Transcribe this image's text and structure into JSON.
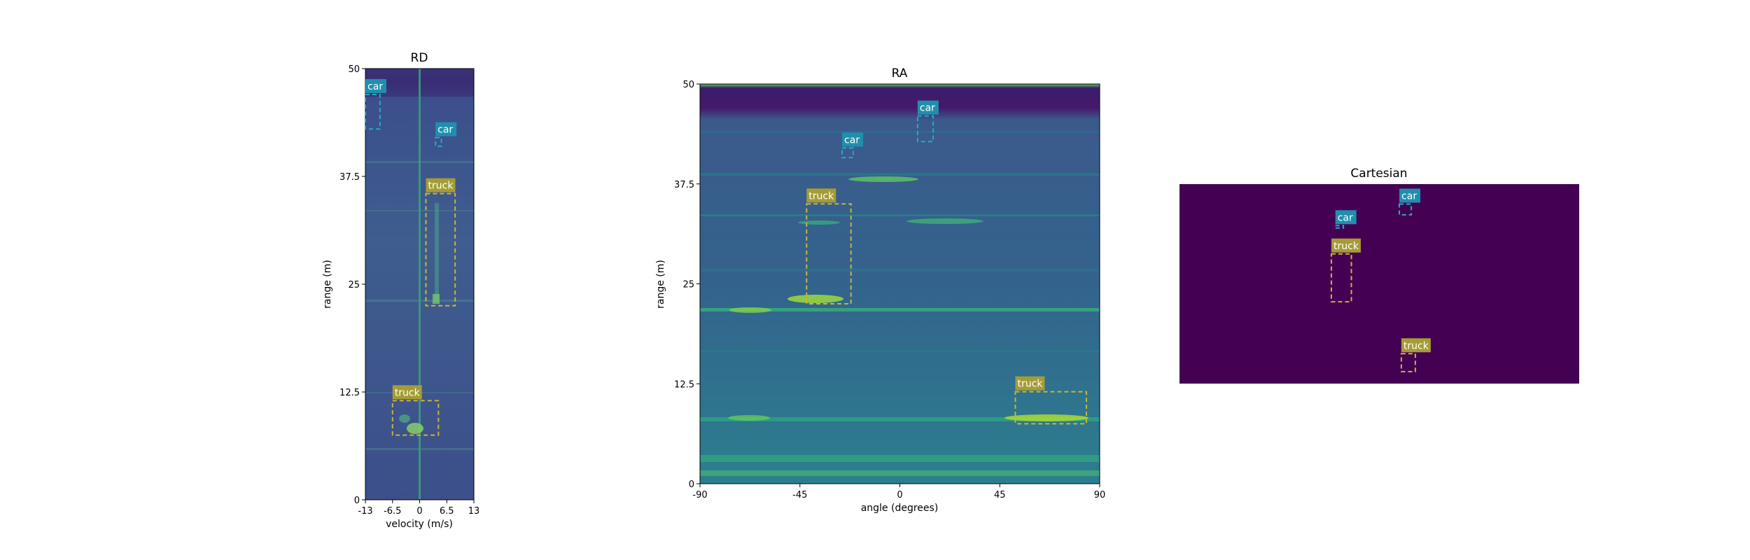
{
  "chart_data": [
    {
      "type": "heatmap",
      "title": "RD",
      "xlabel": "velocity (m/s)",
      "ylabel": "range (m)",
      "xlim": [
        -13,
        13
      ],
      "ylim": [
        0,
        50
      ],
      "xticks": [
        "-13",
        "-6.5",
        "0",
        "6.5",
        "13"
      ],
      "yticks": [
        "0",
        "12.5",
        "25",
        "37.5",
        "50"
      ],
      "colormap": "viridis",
      "annotations": [
        {
          "label": "car",
          "class": "car",
          "x": [
            -13,
            -9.5
          ],
          "y": [
            43,
            47
          ]
        },
        {
          "label": "car",
          "class": "car",
          "x": [
            3.8,
            5.2
          ],
          "y": [
            41,
            42
          ]
        },
        {
          "label": "truck",
          "class": "truck",
          "x": [
            1.5,
            8.5
          ],
          "y": [
            22.5,
            35.5
          ]
        },
        {
          "label": "truck",
          "class": "truck",
          "x": [
            -6.5,
            4.5
          ],
          "y": [
            7.5,
            11.5
          ]
        }
      ]
    },
    {
      "type": "heatmap",
      "title": "RA",
      "xlabel": "angle (degrees)",
      "ylabel": "range (m)",
      "xlim": [
        -90,
        90
      ],
      "ylim": [
        0,
        50
      ],
      "xticks": [
        "-90",
        "-45",
        "0",
        "45",
        "90"
      ],
      "yticks": [
        "0",
        "12.5",
        "25",
        "37.5",
        "50"
      ],
      "colormap": "viridis",
      "annotations": [
        {
          "label": "car",
          "class": "car",
          "x": [
            8,
            15
          ],
          "y": [
            42.8,
            46
          ]
        },
        {
          "label": "car",
          "class": "car",
          "x": [
            -26,
            -21
          ],
          "y": [
            40.8,
            42
          ]
        },
        {
          "label": "truck",
          "class": "truck",
          "x": [
            -42,
            -22
          ],
          "y": [
            22.5,
            35
          ]
        },
        {
          "label": "truck",
          "class": "truck",
          "x": [
            52,
            84
          ],
          "y": [
            7.5,
            11.5
          ]
        }
      ]
    },
    {
      "type": "heatmap",
      "title": "Cartesian",
      "xlim": [
        -50,
        50
      ],
      "ylim": [
        0,
        50
      ],
      "colormap": "viridis",
      "annotations": [
        {
          "label": "car",
          "class": "car",
          "x": [
            5,
            8
          ],
          "y": [
            42.3,
            45
          ]
        },
        {
          "label": "car",
          "class": "car",
          "x": [
            -11,
            -9
          ],
          "y": [
            39,
            39.6
          ]
        },
        {
          "label": "truck",
          "class": "truck",
          "x": [
            -12,
            -7
          ],
          "y": [
            20.5,
            32.5
          ]
        },
        {
          "label": "truck",
          "class": "truck",
          "x": [
            5.5,
            9
          ],
          "y": [
            3,
            7.5
          ]
        }
      ]
    }
  ],
  "colors": {
    "car_box": "#2aa7c4",
    "car_label_bg": "#1f8fad",
    "truck_box": "#c9b435",
    "truck_label_bg": "#a59c34",
    "cartesian_bg": "#440154"
  }
}
